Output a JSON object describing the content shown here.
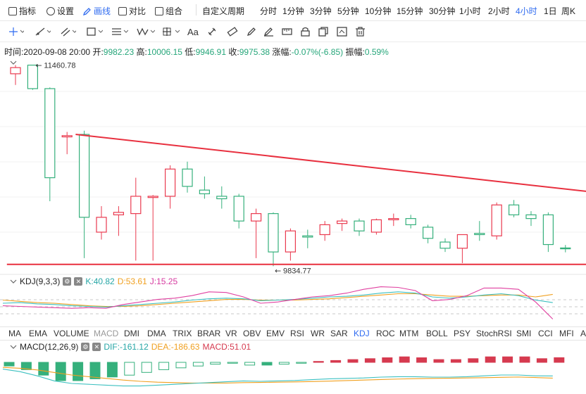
{
  "toolbar": {
    "indicators": "指标",
    "settings": "设置",
    "draw": "画线",
    "compare": "对比",
    "combine": "组合",
    "custom_period": "自定义周期",
    "periods": [
      "分时",
      "1分钟",
      "3分钟",
      "5分钟",
      "10分钟",
      "15分钟",
      "30分钟",
      "1小时",
      "2小时",
      "4小时",
      "1日",
      "周K"
    ],
    "active_period": "4小时"
  },
  "drawing_tools": [
    "crosshair-icon",
    "trend-line-icon",
    "parallel-channel-icon",
    "rectangle-icon",
    "horizontal-lines-icon",
    "wave-pattern-icon",
    "measure-icon",
    "text-icon",
    "magnet-icon",
    "ruler-icon",
    "pencil-icon",
    "lock-icon",
    "copy-icon",
    "hide-icon",
    "delete-icon"
  ],
  "text_tool_label": "Aa",
  "ohlc": {
    "time_label": "时间:",
    "time": "2020-09-08 20:00",
    "open_label": "开:",
    "open": "9982.23",
    "high_label": "高:",
    "high": "10006.15",
    "low_label": "低:",
    "low": "9946.91",
    "close_label": "收:",
    "close": "9975.38",
    "change_label": "涨幅:",
    "change": "-0.07%(-6.85)",
    "amp_label": "振幅:",
    "amp": "0.59%"
  },
  "price_markers": {
    "high": "11460.78",
    "low": "9834.77"
  },
  "kdj": {
    "name": "KDJ(9,3,3)",
    "k": "K:40.82",
    "d": "D:53.61",
    "j": "J:15.25"
  },
  "macd": {
    "name": "MACD(12,26,9)",
    "dif": "DIF:-161.12",
    "dea": "DEA:-186.63",
    "macd": "MACD:51.01"
  },
  "indicator_tabs": [
    "MA",
    "EMA",
    "VOLUME",
    "MACD",
    "DMI",
    "DMA",
    "TRIX",
    "BRAR",
    "VR",
    "OBV",
    "EMV",
    "RSI",
    "WR",
    "SAR",
    "KDJ",
    "ROC",
    "MTM",
    "BOLL",
    "PSY",
    "StochRSI",
    "SMI",
    "CCI",
    "MFI",
    "A"
  ],
  "active_tab": "KDJ",
  "dim_tabs": [
    "MACD"
  ],
  "colors": {
    "up": "#ea3a4f",
    "down": "#35b07c",
    "accent": "#2f6bf0",
    "k": "#3cc0c0",
    "d": "#f0a020",
    "j": "#e040a0",
    "trendline": "#e8303f"
  },
  "chart_data": {
    "type": "candlestick",
    "ylim": [
      9780,
      11520
    ],
    "candles": [
      {
        "o": 11390,
        "h": 11460,
        "l": 11300,
        "c": 11440
      },
      {
        "o": 11460,
        "h": 11460.78,
        "l": 11260,
        "c": 11270
      },
      {
        "o": 11270,
        "h": 11280,
        "l": 10360,
        "c": 10550
      },
      {
        "o": 10880,
        "h": 10920,
        "l": 10740,
        "c": 10890
      },
      {
        "o": 10900,
        "h": 10930,
        "l": 9900,
        "c": 10230
      },
      {
        "o": 10110,
        "h": 10320,
        "l": 10050,
        "c": 10230
      },
      {
        "o": 10250,
        "h": 10320,
        "l": 10080,
        "c": 10270
      },
      {
        "o": 10260,
        "h": 10550,
        "l": 9880,
        "c": 10400
      },
      {
        "o": 10390,
        "h": 10410,
        "l": 9880,
        "c": 10400
      },
      {
        "o": 10400,
        "h": 10650,
        "l": 10300,
        "c": 10620
      },
      {
        "o": 10620,
        "h": 10680,
        "l": 10430,
        "c": 10480
      },
      {
        "o": 10450,
        "h": 10560,
        "l": 10380,
        "c": 10420
      },
      {
        "o": 10400,
        "h": 10480,
        "l": 10300,
        "c": 10380
      },
      {
        "o": 10400,
        "h": 10420,
        "l": 10140,
        "c": 10200
      },
      {
        "o": 10200,
        "h": 10300,
        "l": 9900,
        "c": 10260
      },
      {
        "o": 10260,
        "h": 10270,
        "l": 9834.77,
        "c": 9950
      },
      {
        "o": 9950,
        "h": 10140,
        "l": 9880,
        "c": 10120
      },
      {
        "o": 10080,
        "h": 10130,
        "l": 9980,
        "c": 10070
      },
      {
        "o": 10090,
        "h": 10200,
        "l": 10040,
        "c": 10170
      },
      {
        "o": 10180,
        "h": 10220,
        "l": 10120,
        "c": 10200
      },
      {
        "o": 10200,
        "h": 10220,
        "l": 10080,
        "c": 10120
      },
      {
        "o": 10110,
        "h": 10220,
        "l": 10090,
        "c": 10210
      },
      {
        "o": 10210,
        "h": 10260,
        "l": 10160,
        "c": 10220
      },
      {
        "o": 10220,
        "h": 10250,
        "l": 10140,
        "c": 10170
      },
      {
        "o": 10150,
        "h": 10170,
        "l": 10020,
        "c": 10060
      },
      {
        "o": 10030,
        "h": 10060,
        "l": 9950,
        "c": 9980
      },
      {
        "o": 9980,
        "h": 10080,
        "l": 9860,
        "c": 10090
      },
      {
        "o": 10100,
        "h": 10200,
        "l": 10040,
        "c": 10090
      },
      {
        "o": 10080,
        "h": 10350,
        "l": 10050,
        "c": 10330
      },
      {
        "o": 10330,
        "h": 10370,
        "l": 10230,
        "c": 10250
      },
      {
        "o": 10250,
        "h": 10280,
        "l": 10160,
        "c": 10220
      },
      {
        "o": 10250,
        "h": 10270,
        "l": 9950,
        "c": 10010
      },
      {
        "o": 9982.23,
        "h": 10006.15,
        "l": 9946.91,
        "c": 9975.38
      }
    ],
    "trendlines": [
      {
        "from": [
          3.5,
          10900
        ],
        "to": [
          34.5,
          10420
        ]
      },
      {
        "from": [
          -0.5,
          9850
        ],
        "to": [
          34.5,
          9850
        ]
      }
    ],
    "kdj": {
      "k": [
        40,
        41,
        39,
        38,
        36,
        35,
        34,
        36,
        38,
        40,
        42,
        45,
        47,
        48,
        47,
        44,
        45,
        46,
        48,
        50,
        51,
        53,
        56,
        58,
        56,
        50,
        48,
        50,
        53,
        55,
        52,
        45,
        41
      ],
      "d": [
        45,
        43,
        41,
        40,
        38,
        36,
        35,
        35,
        36,
        38,
        40,
        42,
        44,
        46,
        46,
        45,
        45,
        45,
        46,
        47,
        49,
        51,
        53,
        55,
        55,
        53,
        51,
        51,
        52,
        53,
        53,
        50,
        54
      ],
      "j": [
        36,
        35,
        34,
        33,
        32,
        33,
        32,
        38,
        42,
        46,
        48,
        52,
        58,
        57,
        50,
        40,
        42,
        46,
        50,
        52,
        56,
        62,
        66,
        65,
        60,
        44,
        46,
        52,
        64,
        64,
        62,
        42,
        15
      ]
    },
    "macd": {
      "dif": [
        -80,
        -110,
        -160,
        -220,
        -250,
        -260,
        -270,
        -280,
        -280,
        -270,
        -260,
        -250,
        -240,
        -230,
        -220,
        -225,
        -220,
        -215,
        -205,
        -195,
        -190,
        -185,
        -175,
        -170,
        -170,
        -175,
        -175,
        -170,
        -160,
        -150,
        -150,
        -160,
        -161
      ],
      "dea": [
        -60,
        -70,
        -90,
        -120,
        -150,
        -170,
        -190,
        -210,
        -225,
        -235,
        -240,
        -245,
        -245,
        -245,
        -240,
        -238,
        -235,
        -232,
        -228,
        -222,
        -216,
        -210,
        -204,
        -198,
        -193,
        -190,
        -188,
        -185,
        -182,
        -178,
        -174,
        -180,
        -187
      ],
      "hist": [
        -40,
        -80,
        -140,
        -200,
        -200,
        -180,
        -160,
        -140,
        -110,
        -80,
        -60,
        -40,
        -20,
        -10,
        -30,
        -30,
        -20,
        -10,
        10,
        20,
        30,
        40,
        50,
        60,
        50,
        30,
        30,
        40,
        60,
        60,
        60,
        40,
        51
      ]
    }
  }
}
